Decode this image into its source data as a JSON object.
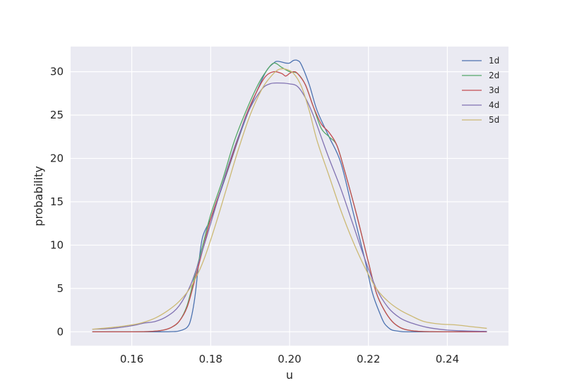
{
  "chart_data": {
    "type": "line",
    "title": "",
    "xlabel": "u",
    "ylabel": "probability",
    "xlim": [
      0.1445,
      0.2555
    ],
    "ylim": [
      -1.6,
      32.9
    ],
    "x_ticks": [
      0.16,
      0.18,
      0.2,
      0.22,
      0.24
    ],
    "x_tick_labels": [
      "0.16",
      "0.18",
      "0.20",
      "0.22",
      "0.24"
    ],
    "y_ticks": [
      0,
      5,
      10,
      15,
      20,
      25,
      30
    ],
    "y_tick_labels": [
      "0",
      "5",
      "10",
      "15",
      "20",
      "25",
      "30"
    ],
    "grid": true,
    "legend_position": "top-right",
    "series": [
      {
        "name": "1d",
        "color": "#4c72b0",
        "points": [
          [
            0.15,
            0.0
          ],
          [
            0.16,
            0.0
          ],
          [
            0.165,
            0.0
          ],
          [
            0.17,
            0.02
          ],
          [
            0.172,
            0.1
          ],
          [
            0.174,
            0.5
          ],
          [
            0.175,
            1.5
          ],
          [
            0.176,
            4.0
          ],
          [
            0.177,
            8.0
          ],
          [
            0.178,
            11.0
          ],
          [
            0.18,
            13.0
          ],
          [
            0.182,
            15.5
          ],
          [
            0.185,
            19.5
          ],
          [
            0.188,
            23.5
          ],
          [
            0.191,
            27.0
          ],
          [
            0.194,
            30.0
          ],
          [
            0.196,
            31.0
          ],
          [
            0.197,
            31.2
          ],
          [
            0.199,
            31.0
          ],
          [
            0.2,
            31.0
          ],
          [
            0.201,
            31.3
          ],
          [
            0.202,
            31.3
          ],
          [
            0.203,
            30.8
          ],
          [
            0.205,
            28.5
          ],
          [
            0.207,
            25.5
          ],
          [
            0.21,
            22.5
          ],
          [
            0.213,
            19.5
          ],
          [
            0.216,
            14.0
          ],
          [
            0.219,
            8.5
          ],
          [
            0.221,
            4.5
          ],
          [
            0.223,
            2.0
          ],
          [
            0.224,
            1.0
          ],
          [
            0.225,
            0.5
          ],
          [
            0.226,
            0.2
          ],
          [
            0.228,
            0.05
          ],
          [
            0.23,
            0.0
          ],
          [
            0.24,
            0.0
          ],
          [
            0.25,
            0.0
          ]
        ]
      },
      {
        "name": "2d",
        "color": "#55a868",
        "points": [
          [
            0.15,
            0.0
          ],
          [
            0.16,
            0.0
          ],
          [
            0.165,
            0.05
          ],
          [
            0.168,
            0.2
          ],
          [
            0.17,
            0.5
          ],
          [
            0.172,
            1.2
          ],
          [
            0.174,
            3.0
          ],
          [
            0.176,
            6.5
          ],
          [
            0.178,
            10.0
          ],
          [
            0.18,
            13.5
          ],
          [
            0.183,
            17.5
          ],
          [
            0.186,
            22.0
          ],
          [
            0.189,
            25.5
          ],
          [
            0.192,
            28.5
          ],
          [
            0.194,
            30.0
          ],
          [
            0.196,
            31.0
          ],
          [
            0.198,
            30.5
          ],
          [
            0.2,
            30.0
          ],
          [
            0.202,
            29.8
          ],
          [
            0.204,
            28.5
          ],
          [
            0.206,
            26.0
          ],
          [
            0.208,
            23.5
          ],
          [
            0.21,
            22.5
          ],
          [
            0.212,
            21.5
          ],
          [
            0.214,
            18.5
          ],
          [
            0.217,
            13.5
          ],
          [
            0.22,
            8.0
          ],
          [
            0.222,
            4.5
          ],
          [
            0.224,
            2.5
          ],
          [
            0.226,
            1.2
          ],
          [
            0.228,
            0.5
          ],
          [
            0.23,
            0.2
          ],
          [
            0.233,
            0.05
          ],
          [
            0.24,
            0.0
          ],
          [
            0.25,
            0.0
          ]
        ]
      },
      {
        "name": "3d",
        "color": "#c44e52",
        "points": [
          [
            0.15,
            0.0
          ],
          [
            0.16,
            0.0
          ],
          [
            0.165,
            0.05
          ],
          [
            0.168,
            0.2
          ],
          [
            0.17,
            0.5
          ],
          [
            0.172,
            1.2
          ],
          [
            0.174,
            2.8
          ],
          [
            0.176,
            6.0
          ],
          [
            0.178,
            9.5
          ],
          [
            0.18,
            13.0
          ],
          [
            0.183,
            17.0
          ],
          [
            0.186,
            21.0
          ],
          [
            0.189,
            25.0
          ],
          [
            0.192,
            28.0
          ],
          [
            0.194,
            29.5
          ],
          [
            0.196,
            30.0
          ],
          [
            0.198,
            29.8
          ],
          [
            0.199,
            29.5
          ],
          [
            0.2,
            29.8
          ],
          [
            0.201,
            30.0
          ],
          [
            0.202,
            29.8
          ],
          [
            0.204,
            28.5
          ],
          [
            0.206,
            26.0
          ],
          [
            0.208,
            24.0
          ],
          [
            0.21,
            23.0
          ],
          [
            0.212,
            21.5
          ],
          [
            0.214,
            18.5
          ],
          [
            0.217,
            13.5
          ],
          [
            0.22,
            8.0
          ],
          [
            0.222,
            4.5
          ],
          [
            0.224,
            2.5
          ],
          [
            0.226,
            1.2
          ],
          [
            0.228,
            0.5
          ],
          [
            0.23,
            0.2
          ],
          [
            0.233,
            0.05
          ],
          [
            0.24,
            0.0
          ],
          [
            0.25,
            0.0
          ]
        ]
      },
      {
        "name": "4d",
        "color": "#8172b2",
        "points": [
          [
            0.15,
            0.3
          ],
          [
            0.155,
            0.4
          ],
          [
            0.16,
            0.7
          ],
          [
            0.163,
            1.0
          ],
          [
            0.166,
            1.2
          ],
          [
            0.169,
            1.8
          ],
          [
            0.172,
            3.0
          ],
          [
            0.175,
            5.5
          ],
          [
            0.178,
            9.5
          ],
          [
            0.181,
            14.0
          ],
          [
            0.184,
            18.5
          ],
          [
            0.187,
            22.5
          ],
          [
            0.19,
            25.8
          ],
          [
            0.193,
            28.0
          ],
          [
            0.195,
            28.6
          ],
          [
            0.197,
            28.7
          ],
          [
            0.2,
            28.6
          ],
          [
            0.202,
            28.3
          ],
          [
            0.204,
            27.0
          ],
          [
            0.206,
            25.0
          ],
          [
            0.208,
            22.5
          ],
          [
            0.21,
            20.0
          ],
          [
            0.213,
            16.5
          ],
          [
            0.216,
            12.5
          ],
          [
            0.219,
            8.5
          ],
          [
            0.222,
            5.0
          ],
          [
            0.225,
            2.8
          ],
          [
            0.228,
            1.6
          ],
          [
            0.231,
            1.0
          ],
          [
            0.235,
            0.5
          ],
          [
            0.24,
            0.2
          ],
          [
            0.245,
            0.1
          ],
          [
            0.25,
            0.05
          ]
        ]
      },
      {
        "name": "5d",
        "color": "#ccb974",
        "points": [
          [
            0.15,
            0.3
          ],
          [
            0.155,
            0.5
          ],
          [
            0.16,
            0.8
          ],
          [
            0.163,
            1.1
          ],
          [
            0.166,
            1.6
          ],
          [
            0.169,
            2.4
          ],
          [
            0.172,
            3.5
          ],
          [
            0.175,
            5.2
          ],
          [
            0.178,
            8.0
          ],
          [
            0.181,
            12.0
          ],
          [
            0.184,
            16.5
          ],
          [
            0.187,
            21.0
          ],
          [
            0.19,
            25.0
          ],
          [
            0.193,
            28.0
          ],
          [
            0.195,
            29.3
          ],
          [
            0.197,
            30.2
          ],
          [
            0.199,
            30.3
          ],
          [
            0.201,
            29.8
          ],
          [
            0.203,
            28.3
          ],
          [
            0.205,
            25.5
          ],
          [
            0.207,
            22.0
          ],
          [
            0.21,
            18.0
          ],
          [
            0.213,
            14.0
          ],
          [
            0.216,
            10.5
          ],
          [
            0.219,
            7.5
          ],
          [
            0.222,
            5.0
          ],
          [
            0.225,
            3.5
          ],
          [
            0.228,
            2.5
          ],
          [
            0.231,
            1.8
          ],
          [
            0.234,
            1.2
          ],
          [
            0.238,
            0.9
          ],
          [
            0.242,
            0.8
          ],
          [
            0.246,
            0.6
          ],
          [
            0.25,
            0.4
          ]
        ]
      }
    ]
  }
}
